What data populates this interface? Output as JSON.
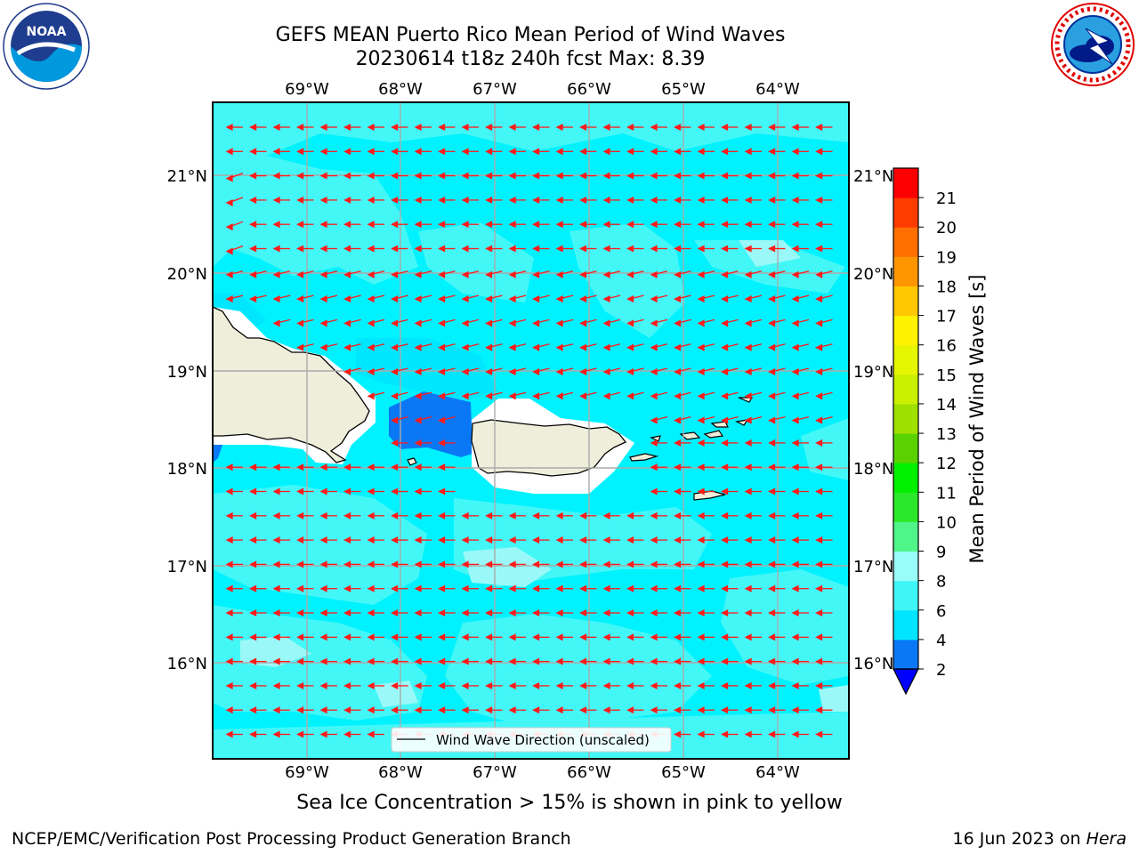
{
  "title_line1": "GEFS MEAN Puerto Rico Mean Period of Wind Waves",
  "title_line2": "20230614 t18z 240h fcst   Max: 8.39",
  "lon_labels": [
    "69°W",
    "68°W",
    "67°W",
    "66°W",
    "65°W",
    "64°W"
  ],
  "lat_labels": [
    "21°N",
    "20°N",
    "19°N",
    "18°N",
    "17°N",
    "16°N"
  ],
  "legend_label": "Wind Wave Direction (unscaled)",
  "colorbar": {
    "label": "Mean Period of Wind Waves [s]",
    "ticks": [
      "2",
      "4",
      "6",
      "8",
      "9",
      "10",
      "11",
      "12",
      "13",
      "14",
      "15",
      "16",
      "17",
      "18",
      "19",
      "20",
      "21"
    ],
    "colors": [
      "#0a78f5",
      "#00e5ff",
      "#40f5f5",
      "#98fcf8",
      "#50f58a",
      "#2ce82c",
      "#00f000",
      "#5ad200",
      "#a0e000",
      "#c8f000",
      "#e6f500",
      "#fff200",
      "#ffc800",
      "#ff9600",
      "#ff6e00",
      "#ff3c00",
      "#ff0000"
    ],
    "under_color": "#0000ff"
  },
  "note": "Sea Ice Concentration > 15% is shown in pink to yellow",
  "footer_left": "NCEP/EMC/Verification Post Processing Product Generation Branch",
  "footer_date": "16 Jun 2023 on",
  "footer_machine": "Hera",
  "logos": {
    "left": "noaa-logo",
    "right": "nws-logo",
    "noaa_text": "NOAA"
  }
}
